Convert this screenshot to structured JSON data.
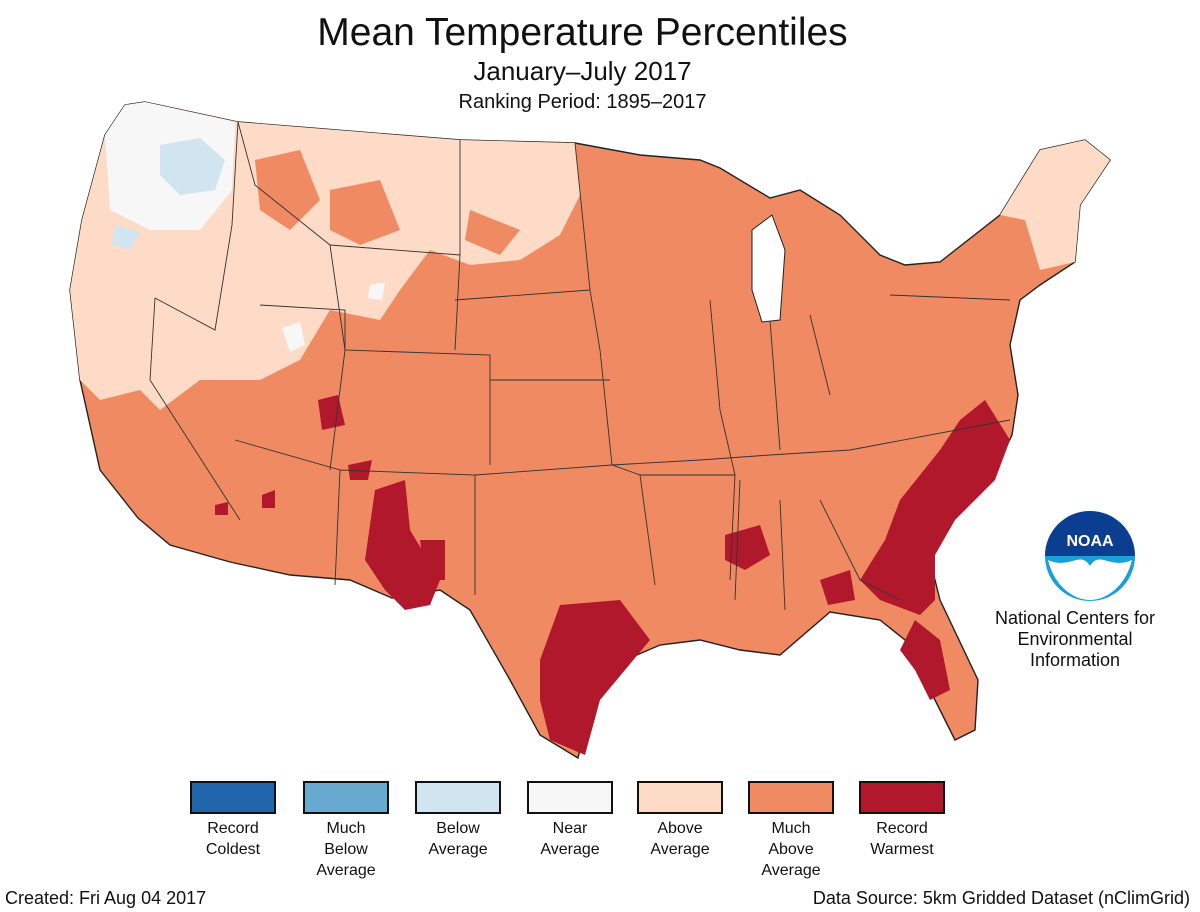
{
  "header": {
    "title": "Mean Temperature Percentiles",
    "period": "January–July 2017",
    "ranking": "Ranking Period: 1895–2017"
  },
  "logo": {
    "mark_text": "NOAA",
    "org_name": "National Centers for\nEnvironmental\nInformation"
  },
  "legend": [
    {
      "label": "Record\nColdest",
      "color": "#2166ac"
    },
    {
      "label": "Much\nBelow\nAverage",
      "color": "#67a9cf"
    },
    {
      "label": "Below\nAverage",
      "color": "#d1e5f0"
    },
    {
      "label": "Near\nAverage",
      "color": "#f7f7f7"
    },
    {
      "label": "Above\nAverage",
      "color": "#fddbc7"
    },
    {
      "label": "Much\nAbove\nAverage",
      "color": "#ef8a62"
    },
    {
      "label": "Record\nWarmest",
      "color": "#b2182b"
    }
  ],
  "footer": {
    "created": "Created: Fri Aug 04 2017",
    "source": "Data Source: 5km Gridded Dataset (nClimGrid)"
  }
}
